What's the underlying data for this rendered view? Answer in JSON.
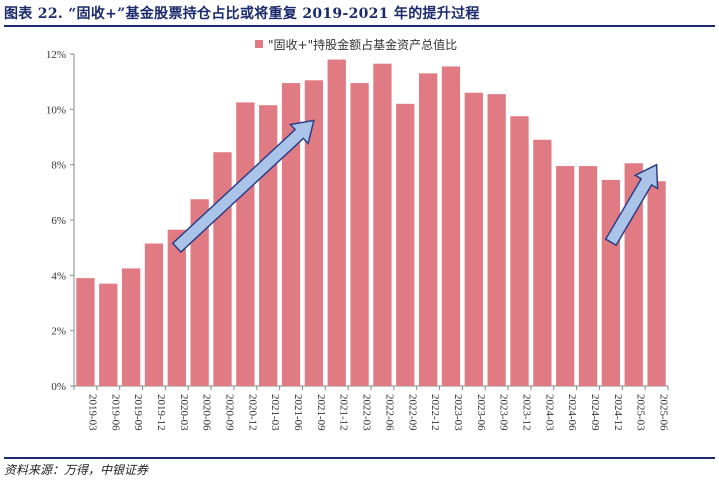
{
  "title": "图表 22. “固收+”基金股票持仓占比或将重复 2019-2021 年的提升过程",
  "source": "资料来源：万得，中银证券",
  "chart_data": {
    "type": "bar",
    "legend": "\"固收+\"持股金额占基金资产总值比",
    "legend_position": "top-center",
    "ylim": [
      0,
      12
    ],
    "yticks": [
      "0%",
      "2%",
      "4%",
      "6%",
      "8%",
      "10%",
      "12%"
    ],
    "categories": [
      "2019-03",
      "2019-06",
      "2019-09",
      "2019-12",
      "2020-03",
      "2020-06",
      "2020-09",
      "2020-12",
      "2021-03",
      "2021-06",
      "2021-09",
      "2021-12",
      "2022-03",
      "2022-06",
      "2022-09",
      "2022-12",
      "2023-03",
      "2023-06",
      "2023-09",
      "2023-12",
      "2024-03",
      "2024-06",
      "2024-09",
      "2024-12",
      "2025-03",
      "2025-06"
    ],
    "values": [
      3.9,
      3.7,
      4.25,
      5.15,
      5.65,
      6.75,
      8.45,
      10.25,
      10.15,
      10.95,
      11.05,
      11.8,
      10.95,
      11.65,
      10.2,
      11.3,
      11.55,
      10.6,
      10.55,
      9.75,
      8.9,
      7.95,
      7.95,
      7.45,
      8.05,
      7.4
    ],
    "bar_color": "#e07b84",
    "arrow_color": "#a9c4e8",
    "arrow_border": "#2e3e86",
    "annotations": [
      {
        "type": "arrow",
        "from": {
          "category": "2020-03",
          "value": 5.0
        },
        "to": {
          "category": "2021-09",
          "value": 9.6
        }
      },
      {
        "type": "arrow",
        "from": {
          "category": "2024-12",
          "value": 5.2
        },
        "to": {
          "category": "2025-06",
          "value": 8.0
        }
      }
    ]
  }
}
